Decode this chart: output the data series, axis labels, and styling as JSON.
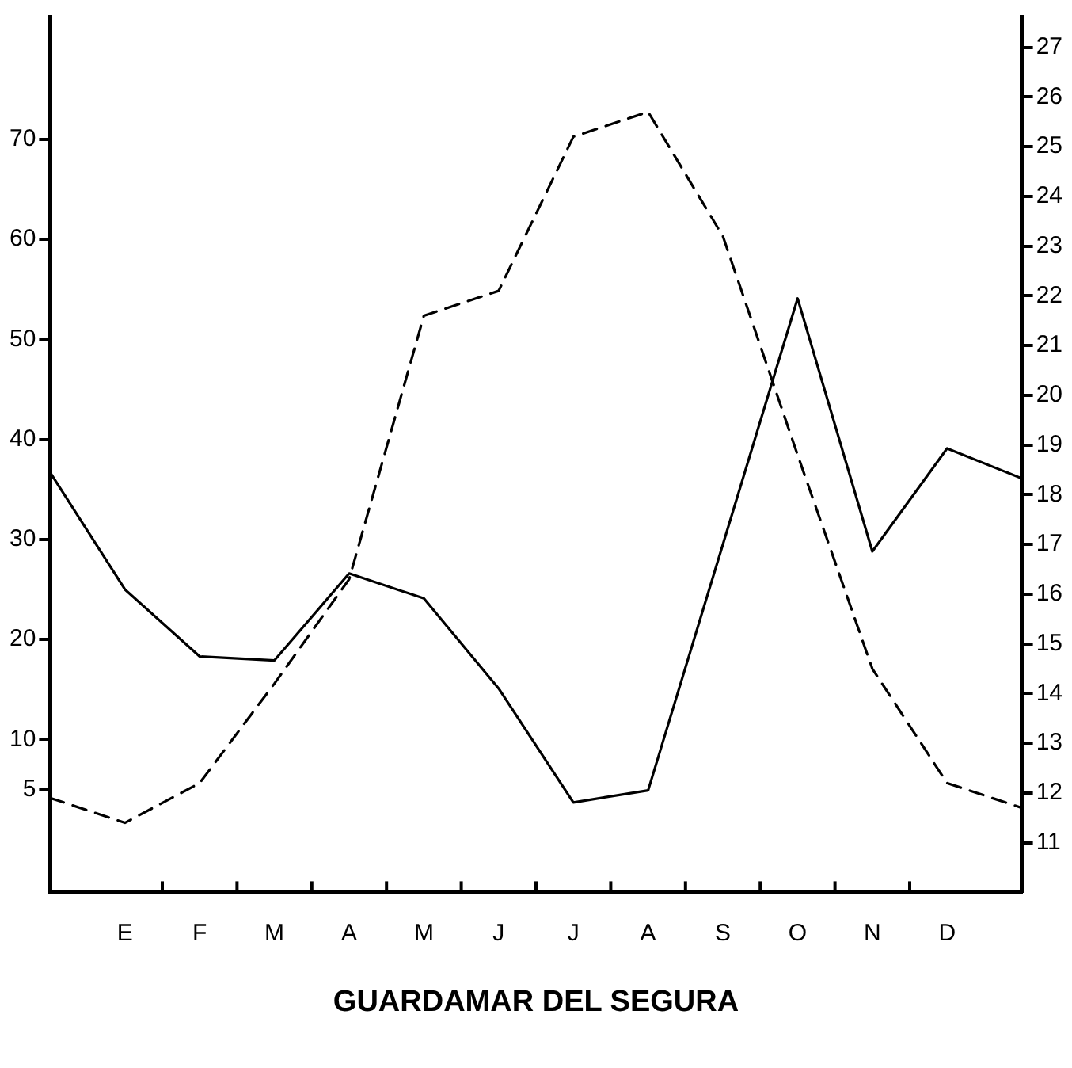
{
  "chart_data": {
    "type": "line",
    "title": "GUARDAMAR DEL SEGURA",
    "categories": [
      null,
      "E",
      "F",
      "M",
      "A",
      "M",
      "J",
      "J",
      "A",
      "S",
      "O",
      "N",
      "D",
      null
    ],
    "ylim": [
      -5.3,
      82.2
    ],
    "yticks": [
      5,
      10,
      20,
      30,
      40,
      50,
      60,
      70
    ],
    "y2lim": [
      10,
      27.6
    ],
    "y2ticks": [
      11,
      12,
      13,
      14,
      15,
      16,
      17,
      18,
      19,
      20,
      21,
      22,
      23,
      24,
      25,
      26,
      27
    ],
    "grid": false,
    "legend": false,
    "marker": "none",
    "series": [
      {
        "color": "#000000",
        "line_style": "solid",
        "axis": "y",
        "values": [
          36.7,
          25,
          18.3,
          17.9,
          26.6,
          24.1,
          15.1,
          3.7,
          4.9,
          29.5,
          54.1,
          28.8,
          39.1,
          36.1
        ]
      },
      {
        "color": "#000000",
        "line_style": "dashed",
        "axis": "y2",
        "values": [
          11.9,
          11.4,
          12.2,
          14.2,
          16.3,
          21.6,
          22.1,
          25.2,
          25.7,
          23.2,
          18.8,
          14.5,
          12.2,
          11.7
        ]
      }
    ]
  }
}
